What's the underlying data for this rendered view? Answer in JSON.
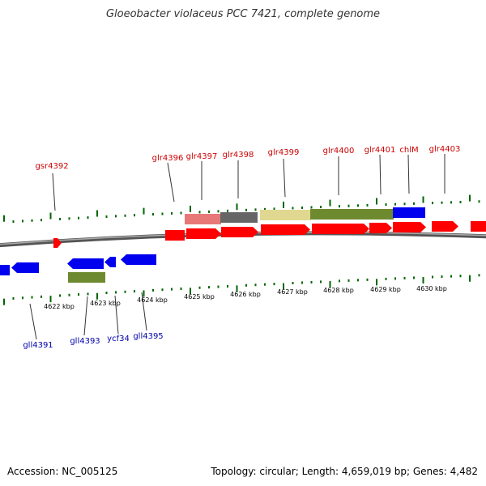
{
  "title": "Gloeobacter violaceus PCC 7421, complete genome",
  "footer": {
    "accession": "Accession: NC_005125",
    "summary": "Topology: circular; Length: 4,659,019 bp; Genes: 4,482"
  },
  "colors": {
    "forward_label": "#cc0000",
    "reverse_label": "#0000aa",
    "forward_gene": "#ff0000",
    "reverse_gene": "#0000ee",
    "tick": "#006600",
    "backbone": "#777777"
  },
  "scale_labels": [
    "4622 kbp",
    "4623 kbp",
    "4624 kbp",
    "4625 kbp",
    "4626 kbp",
    "4627 kbp",
    "4628 kbp",
    "4629 kbp",
    "4630 kbp"
  ],
  "forward_labels": [
    "gsr4392",
    "glr4396",
    "glr4397",
    "glr4398",
    "glr4399",
    "glr4400",
    "glr4401",
    "chlM",
    "glr4403"
  ],
  "reverse_labels": [
    "gll4391",
    "gll4393",
    "ycf34",
    "gll4395"
  ]
}
